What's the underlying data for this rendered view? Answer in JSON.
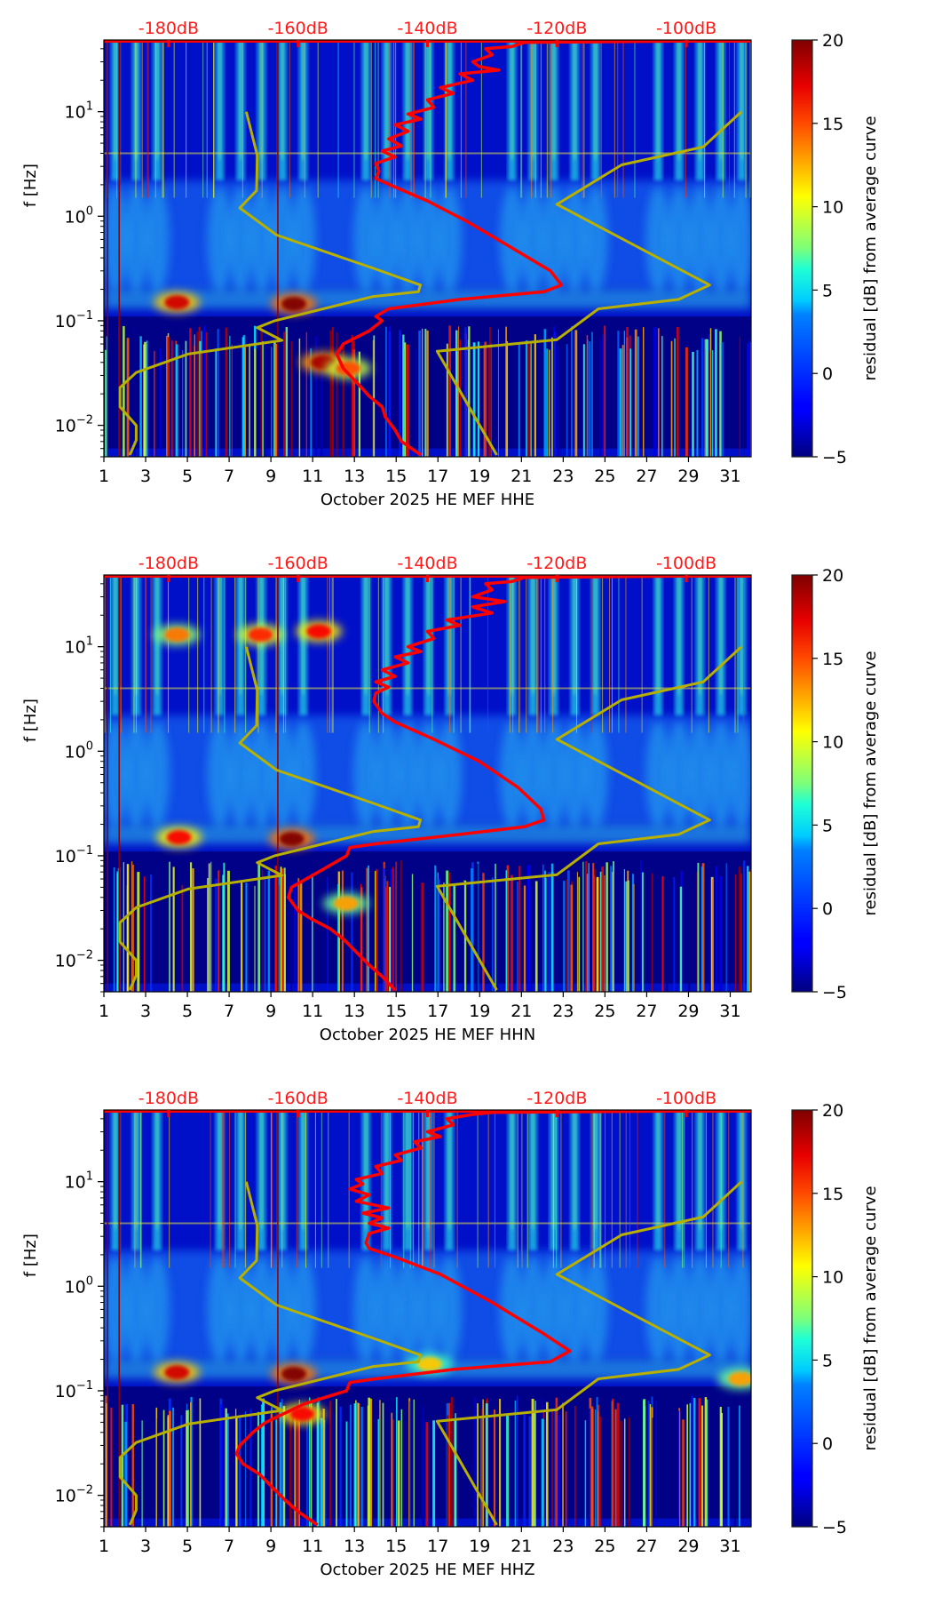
{
  "chart_data": {
    "type": "heatmap",
    "layout": "3 stacked spectrogram panels, each with a colorbar on the right",
    "x_ticks": [
      "1",
      "3",
      "5",
      "7",
      "9",
      "11",
      "13",
      "15",
      "17",
      "19",
      "21",
      "23",
      "25",
      "27",
      "29",
      "31"
    ],
    "x_tick_values": [
      1,
      3,
      5,
      7,
      9,
      11,
      13,
      15,
      17,
      19,
      21,
      23,
      25,
      27,
      29,
      31
    ],
    "xlim": [
      1,
      32
    ],
    "ylim": [
      0.005,
      48.5
    ],
    "yscale": "log",
    "y_ticks": [
      {
        "value": 10,
        "base": "10",
        "exp": "1"
      },
      {
        "value": 1,
        "base": "10",
        "exp": "0"
      },
      {
        "value": 0.1,
        "base": "10",
        "exp": "−1"
      },
      {
        "value": 0.01,
        "base": "10",
        "exp": "−2"
      }
    ],
    "ylabel": "f [Hz]",
    "top_axis": {
      "label_values": [
        -180,
        -160,
        -140,
        -120,
        -100
      ],
      "labels": [
        "-180dB",
        "-160dB",
        "-140dB",
        "-120dB",
        "-100dB"
      ],
      "range": [
        -190,
        -90
      ],
      "color": "#ff0000"
    },
    "colorbar": {
      "label": "residual [dB] from average curve",
      "range": [
        -5,
        20
      ],
      "ticks": [
        "20",
        "15",
        "10",
        "5",
        "0",
        "−5"
      ],
      "tick_values": [
        20,
        15,
        10,
        5,
        0,
        -5
      ],
      "colormap": "jet"
    },
    "model_curves_color": "#b8b000",
    "average_curve_color": "#ff0000",
    "nlnm": [
      [
        -168,
        10
      ],
      [
        -166.3,
        3.8
      ],
      [
        -166.4,
        1.76
      ],
      [
        -169,
        1.2
      ],
      [
        -163.3,
        0.66
      ],
      [
        -148.5,
        0.32
      ],
      [
        -141.1,
        0.22
      ],
      [
        -141.4,
        0.19
      ],
      [
        -148.5,
        0.17
      ],
      [
        -163.6,
        0.1
      ],
      [
        -166.3,
        0.086
      ],
      [
        -162.5,
        0.065
      ],
      [
        -177,
        0.048
      ],
      [
        -185,
        0.032
      ],
      [
        -187.5,
        0.023
      ],
      [
        -187.5,
        0.015
      ],
      [
        -185,
        0.01
      ],
      [
        -185,
        0.0072
      ],
      [
        -186,
        0.0052
      ]
    ],
    "nhnm": [
      [
        -91.5,
        10
      ],
      [
        -97.4,
        4.6
      ],
      [
        -110,
        3.1
      ],
      [
        -120,
        1.3
      ],
      [
        -96.4,
        0.22
      ],
      [
        -101.2,
        0.16
      ],
      [
        -113.6,
        0.13
      ],
      [
        -120,
        0.066
      ],
      [
        -138.5,
        0.051
      ],
      [
        -129.3,
        0.0052
      ]
    ],
    "panels": [
      {
        "xlabel": "October 2025 HE MEF  HHE",
        "average_curve": [
          [
            -90,
            48
          ],
          [
            -125,
            46
          ],
          [
            -127,
            42
          ],
          [
            -131,
            40
          ],
          [
            -130,
            35
          ],
          [
            -133,
            30
          ],
          [
            -132,
            27
          ],
          [
            -129,
            25
          ],
          [
            -135,
            23
          ],
          [
            -133,
            20
          ],
          [
            -138,
            17
          ],
          [
            -136,
            15
          ],
          [
            -140,
            13
          ],
          [
            -139,
            11
          ],
          [
            -143,
            9.5
          ],
          [
            -141,
            8.5
          ],
          [
            -145,
            7.5
          ],
          [
            -143,
            6.5
          ],
          [
            -146,
            5.5
          ],
          [
            -144,
            4.7
          ],
          [
            -147,
            4.2
          ],
          [
            -145,
            3.7
          ],
          [
            -148,
            3.2
          ],
          [
            -147.5,
            2.7
          ],
          [
            -148,
            2.3
          ],
          [
            -145,
            1.9
          ],
          [
            -140,
            1.4
          ],
          [
            -134,
            0.9
          ],
          [
            -127,
            0.5
          ],
          [
            -121,
            0.3
          ],
          [
            -119.3,
            0.22
          ],
          [
            -122,
            0.19
          ],
          [
            -135,
            0.16
          ],
          [
            -146,
            0.13
          ],
          [
            -148,
            0.11
          ],
          [
            -147,
            0.1
          ],
          [
            -149,
            0.08
          ],
          [
            -153,
            0.06
          ],
          [
            -154,
            0.048
          ],
          [
            -153,
            0.035
          ],
          [
            -151,
            0.026
          ],
          [
            -149,
            0.019
          ],
          [
            -147,
            0.015
          ],
          [
            -146.5,
            0.012
          ],
          [
            -145,
            0.009
          ],
          [
            -144,
            0.007
          ],
          [
            -141,
            0.0052
          ]
        ],
        "spots": [
          [
            4.5,
            0.15,
            18
          ],
          [
            10.1,
            0.145,
            20
          ],
          [
            11.5,
            0.04,
            19
          ],
          [
            12.7,
            0.035,
            15
          ]
        ]
      },
      {
        "xlabel": "October 2025 HE MEF  HHN",
        "average_curve": [
          [
            -90,
            48
          ],
          [
            -125,
            46
          ],
          [
            -127,
            42
          ],
          [
            -131,
            40
          ],
          [
            -130,
            35
          ],
          [
            -133,
            30
          ],
          [
            -128,
            27
          ],
          [
            -133,
            24
          ],
          [
            -130,
            21
          ],
          [
            -137,
            18
          ],
          [
            -135,
            16
          ],
          [
            -140,
            14
          ],
          [
            -139,
            12
          ],
          [
            -143,
            10
          ],
          [
            -141,
            9
          ],
          [
            -145,
            8
          ],
          [
            -143,
            7
          ],
          [
            -147,
            6
          ],
          [
            -145,
            5.2
          ],
          [
            -148,
            4.6
          ],
          [
            -146,
            4.1
          ],
          [
            -148,
            3.6
          ],
          [
            -148.3,
            3.0
          ],
          [
            -147,
            2.3
          ],
          [
            -145,
            1.9
          ],
          [
            -139,
            1.3
          ],
          [
            -132,
            0.8
          ],
          [
            -126,
            0.45
          ],
          [
            -122.5,
            0.28
          ],
          [
            -122,
            0.22
          ],
          [
            -125,
            0.19
          ],
          [
            -135,
            0.16
          ],
          [
            -148,
            0.13
          ],
          [
            -152,
            0.12
          ],
          [
            -152.5,
            0.1
          ],
          [
            -156,
            0.075
          ],
          [
            -161,
            0.05
          ],
          [
            -161.5,
            0.04
          ],
          [
            -160,
            0.03
          ],
          [
            -158,
            0.025
          ],
          [
            -155,
            0.02
          ],
          [
            -153,
            0.016
          ],
          [
            -151,
            0.012
          ],
          [
            -149,
            0.009
          ],
          [
            -147,
            0.007
          ],
          [
            -145,
            0.0052
          ]
        ],
        "spots": [
          [
            4.6,
            0.15,
            17
          ],
          [
            10.0,
            0.145,
            20
          ],
          [
            8.5,
            13,
            16
          ],
          [
            11.3,
            14,
            17
          ],
          [
            4.5,
            13,
            14
          ],
          [
            12.6,
            0.035,
            13
          ]
        ]
      },
      {
        "xlabel": "October 2025 HE MEF  HHZ",
        "average_curve": [
          [
            -90,
            48
          ],
          [
            -130,
            46
          ],
          [
            -133,
            44
          ],
          [
            -137,
            40
          ],
          [
            -136,
            35
          ],
          [
            -140,
            30
          ],
          [
            -138,
            27
          ],
          [
            -142,
            24
          ],
          [
            -141,
            21
          ],
          [
            -145,
            18
          ],
          [
            -144,
            16
          ],
          [
            -148,
            14
          ],
          [
            -147,
            12
          ],
          [
            -151,
            10.5
          ],
          [
            -150,
            9.5
          ],
          [
            -152,
            8.5
          ],
          [
            -149,
            7.5
          ],
          [
            -151,
            6.5
          ],
          [
            -146,
            5.6
          ],
          [
            -150,
            5.0
          ],
          [
            -147,
            4.5
          ],
          [
            -149,
            4.0
          ],
          [
            -146,
            3.6
          ],
          [
            -149,
            3.2
          ],
          [
            -149.5,
            2.6
          ],
          [
            -149,
            2.3
          ],
          [
            -145,
            1.9
          ],
          [
            -138,
            1.3
          ],
          [
            -130,
            0.7
          ],
          [
            -122,
            0.35
          ],
          [
            -118,
            0.24
          ],
          [
            -121,
            0.19
          ],
          [
            -136,
            0.16
          ],
          [
            -148,
            0.13
          ],
          [
            -152,
            0.12
          ],
          [
            -152.5,
            0.1
          ],
          [
            -159,
            0.075
          ],
          [
            -165,
            0.05
          ],
          [
            -167,
            0.04
          ],
          [
            -169,
            0.03
          ],
          [
            -169.5,
            0.025
          ],
          [
            -168.5,
            0.02
          ],
          [
            -166,
            0.016
          ],
          [
            -164,
            0.012
          ],
          [
            -162,
            0.009
          ],
          [
            -160,
            0.007
          ],
          [
            -157,
            0.0052
          ]
        ],
        "spots": [
          [
            4.5,
            0.15,
            18
          ],
          [
            10.1,
            0.145,
            20
          ],
          [
            16.6,
            0.18,
            12
          ],
          [
            31.5,
            0.13,
            13
          ],
          [
            10.5,
            0.06,
            17
          ]
        ]
      }
    ]
  }
}
